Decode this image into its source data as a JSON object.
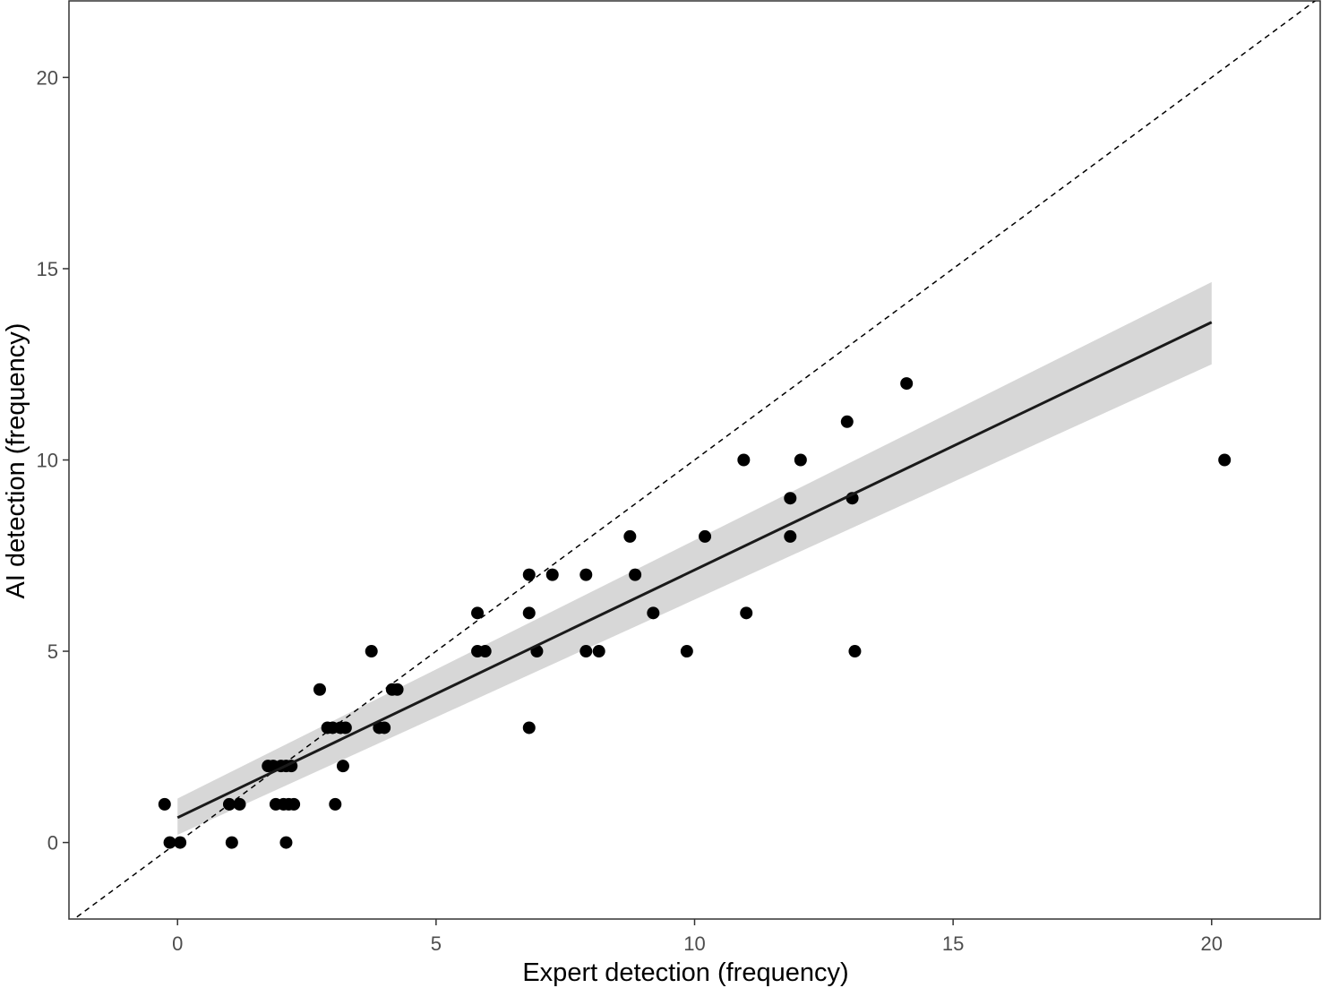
{
  "chart_data": {
    "type": "scatter",
    "title": "",
    "xlabel": "Expert detection (frequency)",
    "ylabel": "AI detection (frequency)",
    "xlim": [
      -2.1,
      22.1
    ],
    "ylim": [
      -2.0,
      22.0
    ],
    "x_ticks": [
      0,
      5,
      10,
      15,
      20
    ],
    "y_ticks": [
      0,
      5,
      10,
      15,
      20
    ],
    "x_tick_labels": [
      "0",
      "5",
      "10",
      "15",
      "20"
    ],
    "y_tick_labels": [
      "0",
      "5",
      "10",
      "15",
      "20"
    ],
    "grid": false,
    "legend": "none",
    "points": [
      {
        "x": -0.25,
        "y": 1
      },
      {
        "x": -0.15,
        "y": 0
      },
      {
        "x": 0.05,
        "y": 0
      },
      {
        "x": 1.0,
        "y": 1
      },
      {
        "x": 1.05,
        "y": 0
      },
      {
        "x": 1.2,
        "y": 1
      },
      {
        "x": 1.75,
        "y": 2
      },
      {
        "x": 1.85,
        "y": 2
      },
      {
        "x": 1.9,
        "y": 1
      },
      {
        "x": 2.0,
        "y": 2
      },
      {
        "x": 2.05,
        "y": 1
      },
      {
        "x": 2.1,
        "y": 2
      },
      {
        "x": 2.1,
        "y": 0
      },
      {
        "x": 2.15,
        "y": 1
      },
      {
        "x": 2.2,
        "y": 2
      },
      {
        "x": 2.25,
        "y": 1
      },
      {
        "x": 2.75,
        "y": 4
      },
      {
        "x": 2.9,
        "y": 3
      },
      {
        "x": 3.0,
        "y": 3
      },
      {
        "x": 3.05,
        "y": 1
      },
      {
        "x": 3.15,
        "y": 3
      },
      {
        "x": 3.2,
        "y": 2
      },
      {
        "x": 3.25,
        "y": 3
      },
      {
        "x": 3.75,
        "y": 5
      },
      {
        "x": 3.9,
        "y": 3
      },
      {
        "x": 4.0,
        "y": 3
      },
      {
        "x": 4.15,
        "y": 4
      },
      {
        "x": 4.25,
        "y": 4
      },
      {
        "x": 5.8,
        "y": 6
      },
      {
        "x": 5.8,
        "y": 5
      },
      {
        "x": 5.95,
        "y": 5
      },
      {
        "x": 6.8,
        "y": 7
      },
      {
        "x": 6.8,
        "y": 6
      },
      {
        "x": 6.8,
        "y": 3
      },
      {
        "x": 6.95,
        "y": 5
      },
      {
        "x": 7.25,
        "y": 7
      },
      {
        "x": 7.9,
        "y": 7
      },
      {
        "x": 7.9,
        "y": 5
      },
      {
        "x": 8.15,
        "y": 5
      },
      {
        "x": 8.75,
        "y": 8
      },
      {
        "x": 8.85,
        "y": 7
      },
      {
        "x": 9.2,
        "y": 6
      },
      {
        "x": 9.85,
        "y": 5
      },
      {
        "x": 10.2,
        "y": 8
      },
      {
        "x": 10.95,
        "y": 10
      },
      {
        "x": 11.0,
        "y": 6
      },
      {
        "x": 11.85,
        "y": 9
      },
      {
        "x": 11.85,
        "y": 8
      },
      {
        "x": 12.05,
        "y": 10
      },
      {
        "x": 12.95,
        "y": 11
      },
      {
        "x": 13.05,
        "y": 9
      },
      {
        "x": 13.1,
        "y": 5
      },
      {
        "x": 14.1,
        "y": 12
      },
      {
        "x": 20.25,
        "y": 10
      }
    ],
    "reference_line": {
      "style": "dashed",
      "slope": 1,
      "intercept": 0
    },
    "fit_line": {
      "x_start": 0,
      "x_end": 20,
      "y_start": 0.65,
      "y_end": 13.6,
      "ci_lower_start": 0.2,
      "ci_upper_start": 1.15,
      "ci_lower_end": 12.5,
      "ci_upper_end": 14.65
    },
    "colors": {
      "points": "#000000",
      "fit_line": "#1a1a1a",
      "ribbon": "#d3d3d3",
      "reference_line": "#000000"
    }
  }
}
